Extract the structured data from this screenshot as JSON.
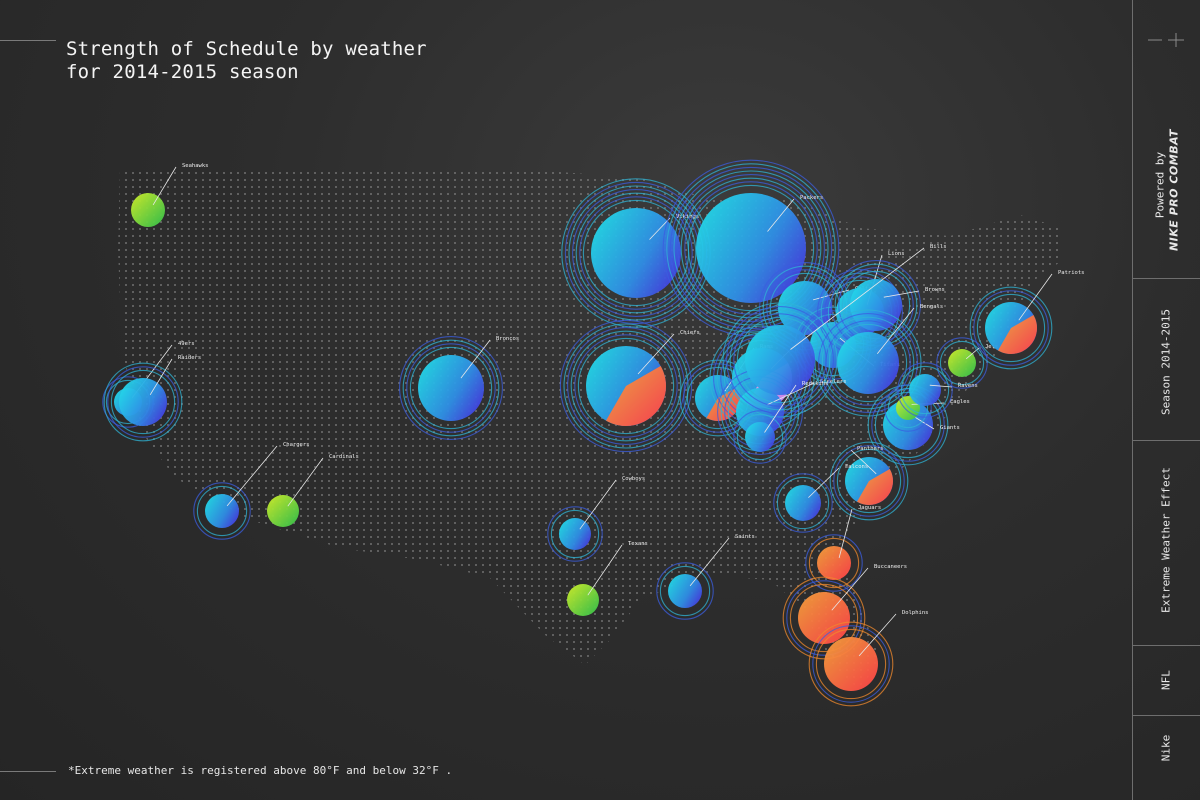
{
  "title": {
    "line1": "Strength of Schedule by weather",
    "line2": "for 2014-2015 season"
  },
  "footnote": "*Extreme weather is registered above 80°F and below 32°F .",
  "sidebar": {
    "powered_by": "Powered by",
    "brand": "NIKE PRO COMBAT",
    "season": "Season 2014-2015",
    "effect": "Extreme Weather Effect",
    "league": "NFL",
    "sponsor": "Nike"
  },
  "colors": {
    "background": "#2b2b2b",
    "cold_start": "#25d6e6",
    "cold_end": "#4040e0",
    "hot_start": "#ff4d4d",
    "hot_end": "#f29a2e",
    "mild_start": "#c6ef2b",
    "mild_end": "#33c44a",
    "dot_grid": "#8a8a8a"
  },
  "teams": [
    {
      "name": "Seahawks",
      "kind": "mild"
    },
    {
      "name": "49ers",
      "kind": "cold"
    },
    {
      "name": "Raiders",
      "kind": "cold"
    },
    {
      "name": "Chargers",
      "kind": "cold"
    },
    {
      "name": "Cardinals",
      "kind": "mild"
    },
    {
      "name": "Broncos",
      "kind": "cold"
    },
    {
      "name": "Cowboys",
      "kind": "cold"
    },
    {
      "name": "Texans",
      "kind": "mild"
    },
    {
      "name": "Saints",
      "kind": "cold"
    },
    {
      "name": "Vikings",
      "kind": "cold"
    },
    {
      "name": "Packers",
      "kind": "cold"
    },
    {
      "name": "Chiefs",
      "kind": "split-hot"
    },
    {
      "name": "Rams",
      "kind": "split-hot"
    },
    {
      "name": "Bears",
      "kind": "split-pink"
    },
    {
      "name": "Colts",
      "kind": "cold"
    },
    {
      "name": "Titans",
      "kind": "cold"
    },
    {
      "name": "Lions",
      "kind": "cold"
    },
    {
      "name": "Browns",
      "kind": "cold"
    },
    {
      "name": "Bengals",
      "kind": "cold"
    },
    {
      "name": "Steelers",
      "kind": "cold"
    },
    {
      "name": "Bills",
      "kind": "cold"
    },
    {
      "name": "Jets",
      "kind": "mild"
    },
    {
      "name": "Giants",
      "kind": "cold"
    },
    {
      "name": "Patriots",
      "kind": "split-hot"
    },
    {
      "name": "Eagles",
      "kind": "mild"
    },
    {
      "name": "Ravens",
      "kind": "cold"
    },
    {
      "name": "Redskins",
      "kind": "cold"
    },
    {
      "name": "Panthers",
      "kind": "split-hot"
    },
    {
      "name": "Falcons",
      "kind": "cold"
    },
    {
      "name": "Jaguars",
      "kind": "hot"
    },
    {
      "name": "Buccaneers",
      "kind": "hot"
    },
    {
      "name": "Dolphins",
      "kind": "hot"
    }
  ]
}
